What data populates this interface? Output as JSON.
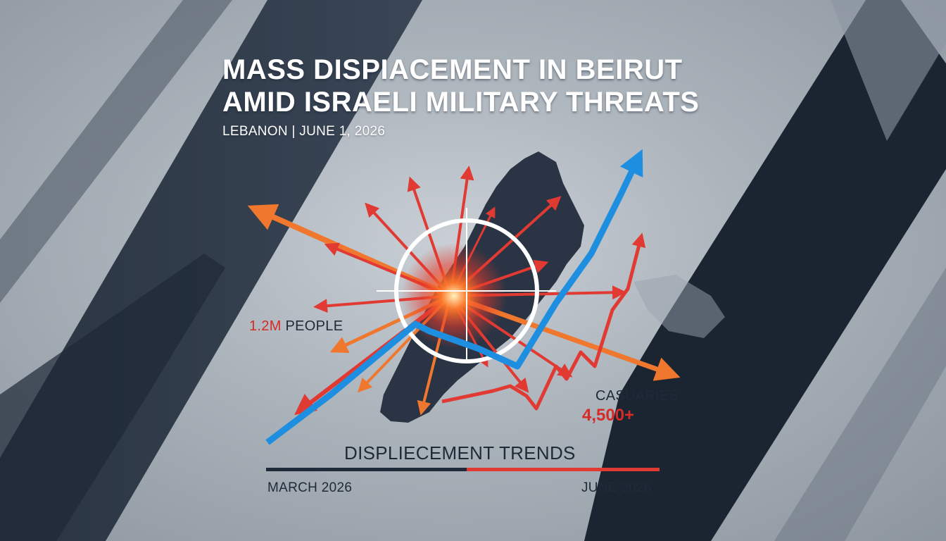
{
  "header": {
    "title_line1": "MASS DISPIACEMENT IN BEIRUT",
    "title_line2": "AMID ISRAELI MILITARY THREATS",
    "dateline": "LEBANON | JUNE 1, 2026"
  },
  "stats": {
    "people_number": "1.2M",
    "people_label": "PEOPLE",
    "casualties_label": "CASUARIES",
    "casualties_value": "4,500+"
  },
  "trend": {
    "title": "DISPLIECEMENT TRENDS",
    "start_label": "MARCH 2026",
    "end_label": "JUNE 2026"
  },
  "colors": {
    "navy": "#1e2a3a",
    "alert_red": "#e03a33",
    "arrow_orange": "#f0772e",
    "trend_blue": "#1e8fe0",
    "text_dark": "#1f2a38"
  }
}
